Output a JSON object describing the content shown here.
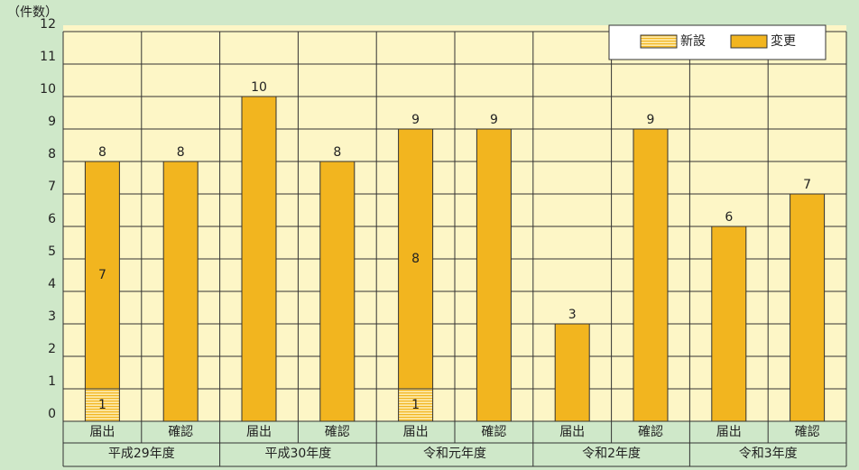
{
  "chart_data": {
    "type": "bar",
    "stacked": true,
    "y_label": "（件数）",
    "categories": [
      "届出",
      "確認",
      "届出",
      "確認",
      "届出",
      "確認",
      "届出",
      "確認",
      "届出",
      "確認"
    ],
    "groups": [
      "平成29年度",
      "平成30年度",
      "令和元年度",
      "令和2年度",
      "令和3年度"
    ],
    "series": [
      {
        "name": "新設",
        "color": "#f7c35a",
        "hatched": true,
        "values": [
          1,
          null,
          null,
          null,
          1,
          null,
          null,
          null,
          null,
          null
        ]
      },
      {
        "name": "変更",
        "color": "#f2b51f",
        "values": [
          7,
          8,
          10,
          8,
          8,
          9,
          3,
          9,
          6,
          7
        ]
      }
    ],
    "totals": [
      8,
      8,
      10,
      8,
      9,
      9,
      3,
      9,
      6,
      7
    ],
    "ylim": [
      0,
      12
    ],
    "yticks": [
      0,
      1,
      2,
      3,
      4,
      5,
      6,
      7,
      8,
      9,
      10,
      11,
      12
    ],
    "grid": true,
    "legend": "top-right"
  }
}
